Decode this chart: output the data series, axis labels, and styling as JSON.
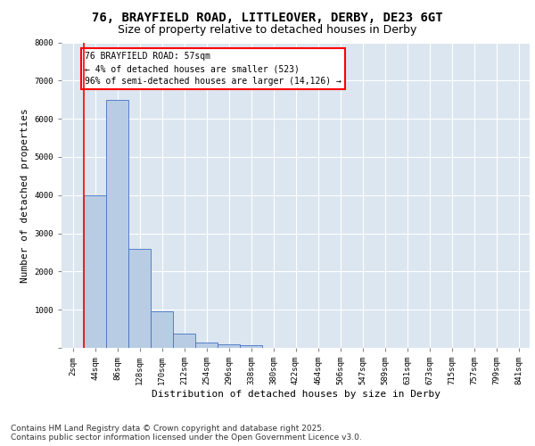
{
  "title_line1": "76, BRAYFIELD ROAD, LITTLEOVER, DERBY, DE23 6GT",
  "title_line2": "Size of property relative to detached houses in Derby",
  "xlabel": "Distribution of detached houses by size in Derby",
  "ylabel": "Number of detached properties",
  "categories": [
    "2sqm",
    "44sqm",
    "86sqm",
    "128sqm",
    "170sqm",
    "212sqm",
    "254sqm",
    "296sqm",
    "338sqm",
    "380sqm",
    "422sqm",
    "464sqm",
    "506sqm",
    "547sqm",
    "589sqm",
    "631sqm",
    "673sqm",
    "715sqm",
    "757sqm",
    "799sqm",
    "841sqm"
  ],
  "values": [
    10,
    4000,
    6500,
    2600,
    950,
    380,
    150,
    100,
    60,
    0,
    0,
    0,
    0,
    0,
    0,
    0,
    0,
    0,
    0,
    0,
    0
  ],
  "bar_color": "#b8cce4",
  "bar_edge_color": "#4472c4",
  "vline_x_index": 1,
  "vline_color": "#ff0000",
  "annotation_title": "76 BRAYFIELD ROAD: 57sqm",
  "annotation_line2": "← 4% of detached houses are smaller (523)",
  "annotation_line3": "96% of semi-detached houses are larger (14,126) →",
  "annotation_box_color": "#ff0000",
  "ylim": [
    0,
    8000
  ],
  "yticks": [
    0,
    1000,
    2000,
    3000,
    4000,
    5000,
    6000,
    7000,
    8000
  ],
  "fig_bg_color": "#ffffff",
  "plot_bg_color": "#dce6f1",
  "grid_color": "#ffffff",
  "footer_line1": "Contains HM Land Registry data © Crown copyright and database right 2025.",
  "footer_line2": "Contains public sector information licensed under the Open Government Licence v3.0.",
  "title_fontsize": 10,
  "subtitle_fontsize": 9,
  "axis_label_fontsize": 8,
  "tick_fontsize": 6.5,
  "footer_fontsize": 6.5,
  "annotation_fontsize": 7
}
